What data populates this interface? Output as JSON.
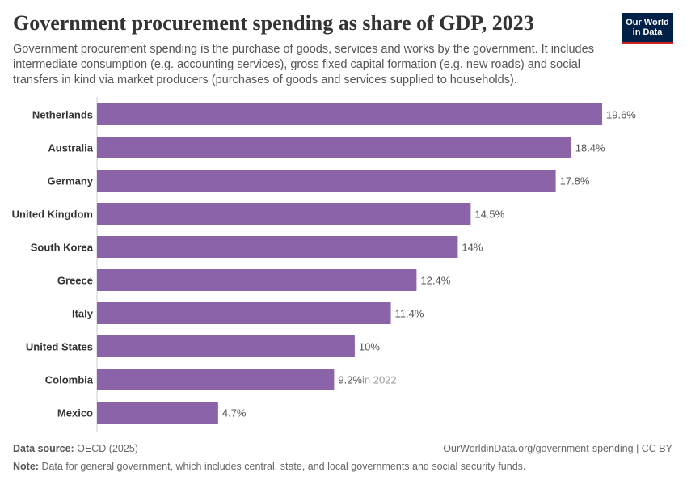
{
  "header": {
    "title": "Government procurement spending as share of GDP, 2023",
    "subtitle": "Government procurement spending is the purchase of goods, services and works by the government. It includes intermediate consumption (e.g. accounting services), gross fixed capital formation (e.g. new roads) and social transfers in kind via market producers (purchases of goods and services supplied to households).",
    "logo_text": "Our World\nin Data"
  },
  "colors": {
    "bar": "#8b63a8",
    "title": "#333333",
    "logo_bg": "#002147",
    "logo_accent": "#ce261e"
  },
  "chart_data": {
    "type": "bar",
    "orientation": "horizontal",
    "categories": [
      "Netherlands",
      "Australia",
      "Germany",
      "United Kingdom",
      "South Korea",
      "Greece",
      "Italy",
      "United States",
      "Colombia",
      "Mexico"
    ],
    "values": [
      19.6,
      18.4,
      17.8,
      14.5,
      14,
      12.4,
      11.4,
      10,
      9.2,
      4.7
    ],
    "value_labels": [
      "19.6%",
      "18.4%",
      "17.8%",
      "14.5%",
      "14%",
      "12.4%",
      "11.4%",
      "10%",
      "9.2%",
      "4.7%"
    ],
    "annotations": [
      "",
      "",
      "",
      "",
      "",
      "",
      "",
      "",
      "in 2022",
      ""
    ],
    "xlim": [
      0,
      19.6
    ],
    "unit": "%",
    "grid": false
  },
  "footer": {
    "source_label": "Data source:",
    "source_text": "OECD (2025)",
    "url_text": "OurWorldinData.org/government-spending | CC BY",
    "note_label": "Note:",
    "note_text": "Data for general government, which includes central, state, and local governments and social security funds."
  }
}
